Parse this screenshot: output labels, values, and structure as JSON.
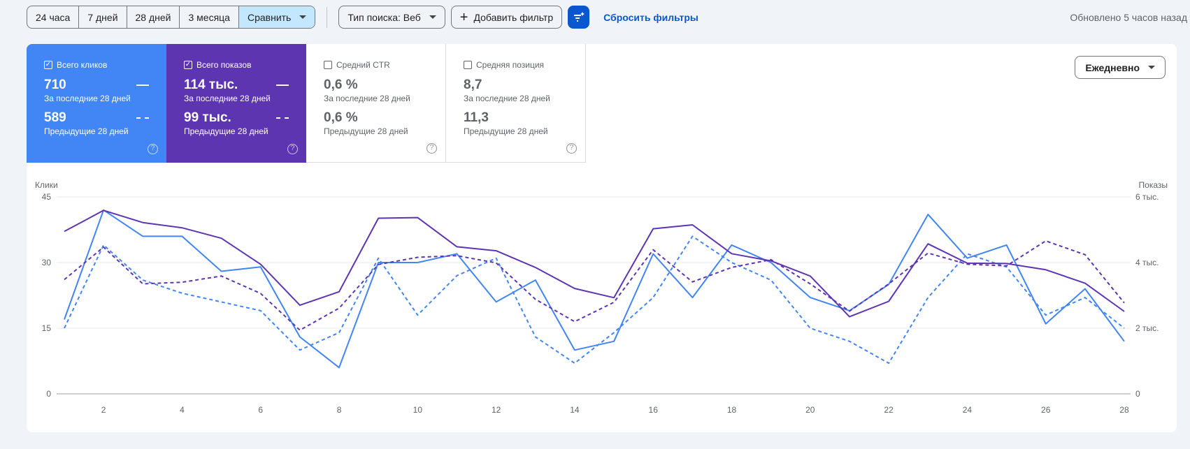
{
  "toolbar": {
    "ranges": [
      "24 часа",
      "7 дней",
      "28 дней",
      "3 месяца"
    ],
    "compare": "Сравнить",
    "search_type": "Тип поиска: Веб",
    "add_filter": "Добавить фильтр",
    "reset": "Сбросить фильтры",
    "updated": "Обновлено 5 часов назад"
  },
  "metrics": [
    {
      "label": "Всего кликов",
      "current": "710",
      "current_label": "За последние 28 дней",
      "previous": "589",
      "previous_label": "Предыдущие 28 дней",
      "checked": true,
      "color": "#4285f4"
    },
    {
      "label": "Всего показов",
      "current": "114 тыс.",
      "current_label": "За последние 28 дней",
      "previous": "99 тыс.",
      "previous_label": "Предыдущие 28 дней",
      "checked": true,
      "color": "#5e35b1"
    },
    {
      "label": "Средний CTR",
      "current": "0,6 %",
      "current_label": "За последние 28 дней",
      "previous": "0,6 %",
      "previous_label": "Предыдущие 28 дней",
      "checked": false
    },
    {
      "label": "Средняя позиция",
      "current": "8,7",
      "current_label": "За последние 28 дней",
      "previous": "11,3",
      "previous_label": "Предыдущие 28 дней",
      "checked": false
    }
  ],
  "granularity": "Ежедневно",
  "chart_data": {
    "type": "line",
    "ylabel_left": "Клики",
    "ylabel_right": "Показы",
    "ylim_left": [
      0,
      45
    ],
    "ylim_right": [
      0,
      6000
    ],
    "yticks_left": [
      "0",
      "15",
      "30",
      "45"
    ],
    "yticks_right": [
      "0",
      "2 тыс.",
      "4 тыс.",
      "6 тыс."
    ],
    "x": [
      1,
      2,
      3,
      4,
      5,
      6,
      7,
      8,
      9,
      10,
      11,
      12,
      13,
      14,
      15,
      16,
      17,
      18,
      19,
      20,
      21,
      22,
      23,
      24,
      25,
      26,
      27,
      28
    ],
    "xticks": [
      "2",
      "4",
      "6",
      "8",
      "10",
      "12",
      "14",
      "16",
      "18",
      "20",
      "22",
      "24",
      "26",
      "28"
    ],
    "series": [
      {
        "name": "Клики (последние 28 дней)",
        "axis": "left",
        "color": "#4285f4",
        "dashed": false,
        "values": [
          17,
          42,
          36,
          36,
          28,
          29,
          13,
          6,
          30,
          30,
          32,
          21,
          26,
          10,
          12,
          32,
          22,
          34,
          30,
          22,
          19,
          25,
          41,
          31,
          34,
          16,
          24,
          12
        ]
      },
      {
        "name": "Клики (предыдущие 28 дней)",
        "axis": "left",
        "color": "#4285f4",
        "dashed": true,
        "values": [
          15,
          34,
          26,
          23,
          21,
          19,
          10,
          14,
          31,
          18,
          27,
          31,
          13,
          7,
          14,
          22,
          36,
          30,
          26,
          15,
          12,
          7,
          22,
          32,
          29,
          18,
          22,
          15
        ]
      },
      {
        "name": "Показы (последние 28 дней)",
        "axis": "right",
        "color": "#5e35b1",
        "dashed": false,
        "values": [
          4950,
          5590,
          5220,
          5060,
          4740,
          3950,
          2700,
          3110,
          5350,
          5370,
          4480,
          4360,
          3850,
          3210,
          2930,
          5030,
          5150,
          4270,
          4050,
          3590,
          2350,
          2820,
          4570,
          3980,
          3970,
          3780,
          3370,
          2510
        ]
      },
      {
        "name": "Показы (предыдущие 28 дней)",
        "axis": "right",
        "color": "#5e35b1",
        "dashed": true,
        "values": [
          3480,
          4470,
          3350,
          3400,
          3590,
          3060,
          1940,
          2610,
          3940,
          4160,
          4210,
          3990,
          2880,
          2200,
          2790,
          4390,
          3410,
          3850,
          4090,
          3350,
          2520,
          3350,
          4290,
          3950,
          3900,
          4660,
          4240,
          2770
        ]
      }
    ]
  }
}
